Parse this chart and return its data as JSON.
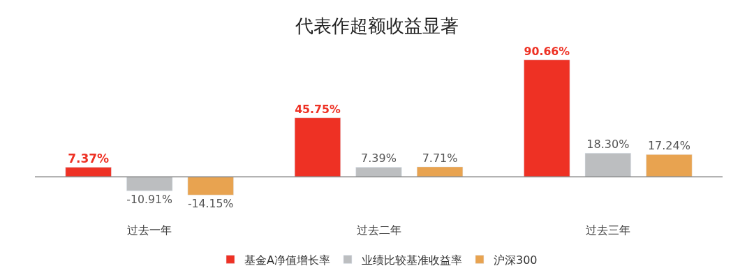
{
  "chart_data": {
    "type": "bar",
    "title": "代表作超额收益显著",
    "categories": [
      "过去一年",
      "过去二年",
      "过去三年"
    ],
    "series": [
      {
        "name": "基金A净值增长率",
        "color": "#ee3124",
        "values": [
          7.37,
          45.75,
          90.66
        ],
        "value_labels": [
          "7.37%",
          "45.75%",
          "90.66%"
        ]
      },
      {
        "name": "业绩比较基准收益率",
        "color": "#bcbec0",
        "values": [
          -10.91,
          7.39,
          18.3
        ],
        "value_labels": [
          "-10.91%",
          "7.39%",
          "18.30%"
        ]
      },
      {
        "name": "沪深300",
        "color": "#e8a350",
        "values": [
          -14.15,
          7.71,
          17.24
        ],
        "value_labels": [
          "-14.15%",
          "7.71%",
          "17.24%"
        ]
      }
    ],
    "legend": "bottom"
  }
}
